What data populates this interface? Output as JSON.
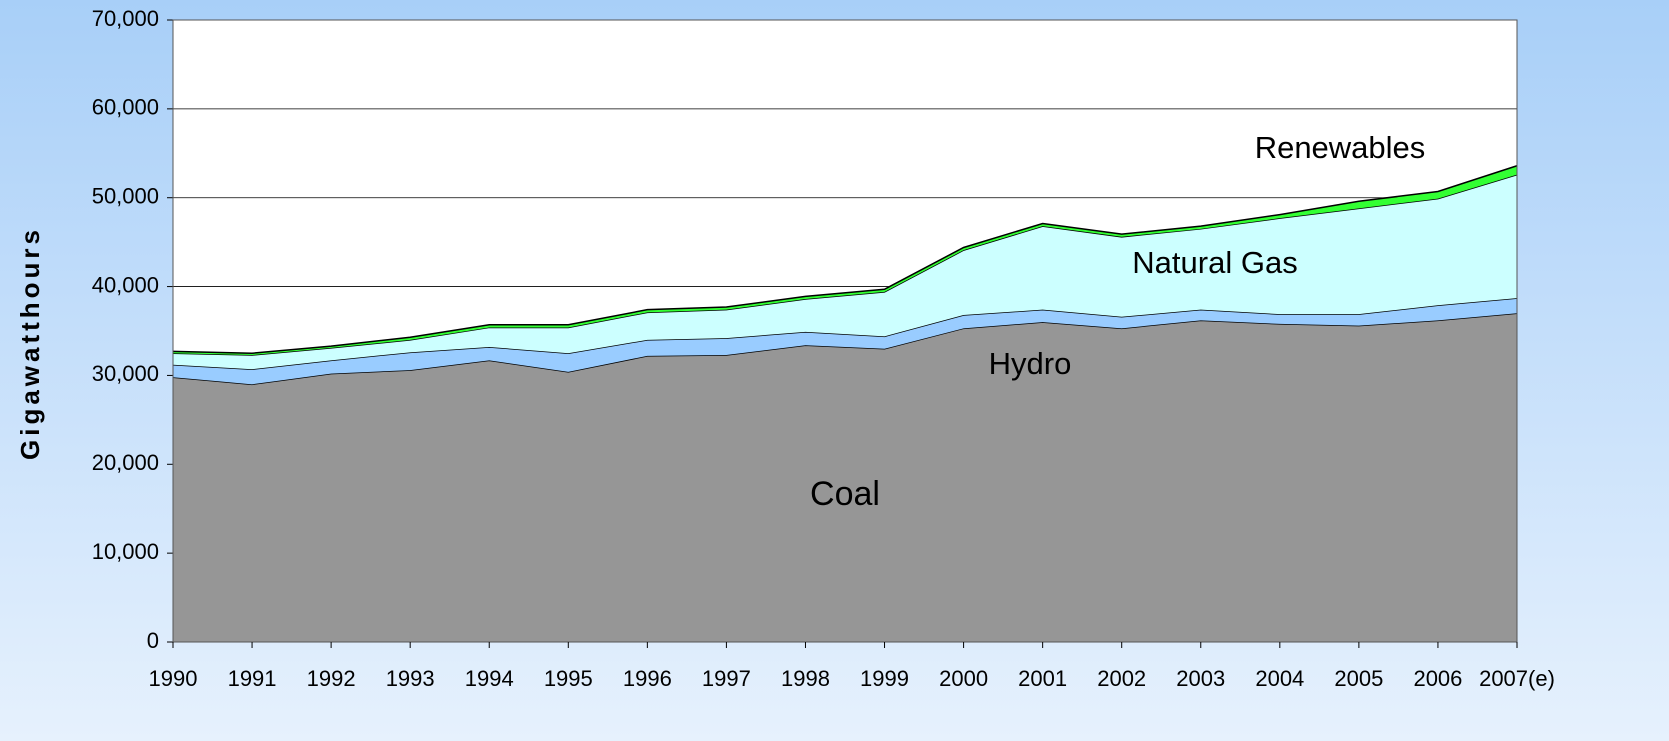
{
  "chart_data": {
    "type": "stacked_area",
    "y_label": "Gigawatthours",
    "categories": [
      "1990",
      "1991",
      "1992",
      "1993",
      "1994",
      "1995",
      "1996",
      "1997",
      "1998",
      "1999",
      "2000",
      "2001",
      "2002",
      "2003",
      "2004",
      "2005",
      "2006",
      "2007(e)"
    ],
    "series": [
      {
        "name": "Coal",
        "color": "#969696",
        "values": [
          29800,
          29000,
          30200,
          30600,
          31700,
          30400,
          32200,
          32300,
          33400,
          33000,
          35300,
          36000,
          35300,
          36200,
          35800,
          35600,
          36200,
          37000
        ]
      },
      {
        "name": "Hydro",
        "color": "#99ccff",
        "values": [
          1400,
          1700,
          1500,
          2000,
          1500,
          2100,
          1800,
          1900,
          1500,
          1400,
          1500,
          1400,
          1300,
          1200,
          1100,
          1300,
          1700,
          1700
        ]
      },
      {
        "name": "Natural Gas",
        "color": "#ccffff",
        "values": [
          1300,
          1600,
          1400,
          1400,
          2200,
          2900,
          3100,
          3200,
          3700,
          5000,
          7300,
          9400,
          9000,
          9100,
          10800,
          11900,
          12000,
          13900
        ]
      },
      {
        "name": "Renewables",
        "color": "#33ff33",
        "values": [
          200,
          200,
          200,
          300,
          300,
          300,
          300,
          300,
          300,
          300,
          300,
          300,
          300,
          300,
          400,
          800,
          800,
          1000
        ]
      }
    ],
    "ylim": [
      0,
      70000
    ],
    "yticks": [
      0,
      {
        "value": 10000,
        "label": "10,000"
      },
      {
        "value": 20000,
        "label": "20,000"
      },
      {
        "value": 30000,
        "label": "30,000"
      },
      {
        "value": 40000,
        "label": "40,000"
      },
      {
        "value": 50000,
        "label": "50,000"
      },
      {
        "value": 60000,
        "label": "60,000"
      },
      {
        "value": 70000,
        "label": "70,000"
      }
    ],
    "grid": true
  }
}
